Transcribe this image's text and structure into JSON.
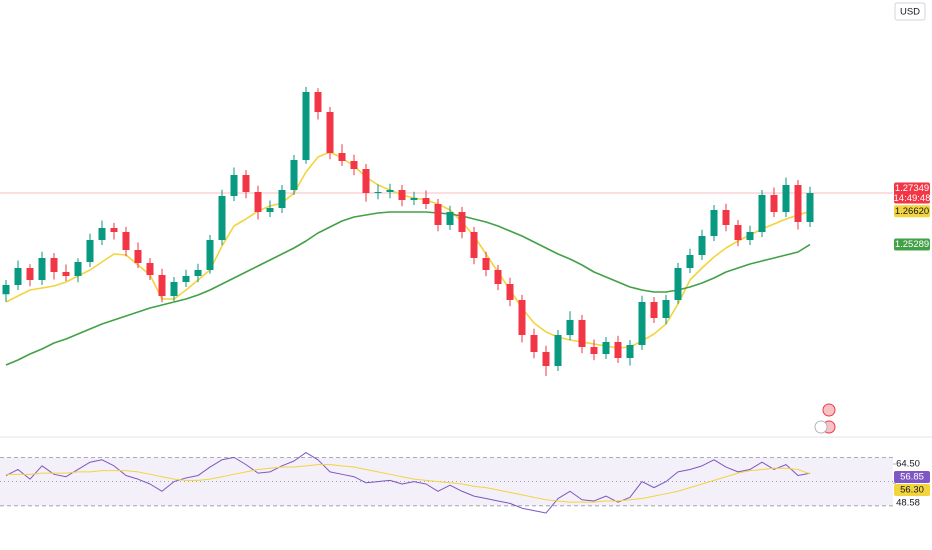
{
  "ui": {
    "currency": "USD"
  },
  "chart_data": {
    "type": "candlestick",
    "ylim": [
      1.1767,
      1.3507
    ],
    "up_color": "#089981",
    "down_color": "#f23645",
    "open": [
      1.233,
      1.2367,
      1.2435,
      1.2387,
      1.2475,
      1.2419,
      1.2403,
      1.2459,
      1.2547,
      1.2595,
      1.2579,
      1.2507,
      1.2455,
      1.2407,
      1.2323,
      1.2379,
      1.2403,
      1.2427,
      1.2547,
      1.2723,
      1.2807,
      1.2739,
      1.2659,
      1.2675,
      1.2747,
      1.2867,
      1.3139,
      1.3059,
      1.2895,
      1.2863,
      1.2831,
      1.2735,
      1.2739,
      1.2747,
      1.2707,
      1.2715,
      1.2691,
      1.2607,
      1.2659,
      1.2579,
      1.2475,
      1.2427,
      1.2371,
      1.2307,
      1.2167,
      1.2099,
      1.2043,
      1.2167,
      1.2227,
      1.2119,
      1.2091,
      1.2139,
      1.2075,
      1.2127,
      1.2299,
      1.2235,
      1.2307,
      1.2435,
      1.2487,
      1.2563,
      1.2667,
      1.2607,
      1.2547,
      1.2579,
      1.2727,
      1.2659,
      1.2767,
      1.2619
    ],
    "high": [
      1.2387,
      1.2465,
      1.245,
      1.25,
      1.2495,
      1.2449,
      1.2474,
      1.2572,
      1.2625,
      1.2615,
      1.2599,
      1.2537,
      1.2475,
      1.2432,
      1.2399,
      1.2428,
      1.2452,
      1.2567,
      1.2748,
      1.2837,
      1.2827,
      1.2764,
      1.2705,
      1.2767,
      1.2887,
      1.3159,
      1.3154,
      1.3079,
      1.293,
      1.2888,
      1.2851,
      1.2769,
      1.2772,
      1.2767,
      1.274,
      1.2745,
      1.2711,
      1.2684,
      1.2679,
      1.2599,
      1.25,
      1.2447,
      1.2396,
      1.2327,
      1.2192,
      1.2124,
      1.2187,
      1.2262,
      1.2247,
      1.2149,
      1.2159,
      1.2164,
      1.2147,
      1.2324,
      1.2319,
      1.2327,
      1.2455,
      1.2512,
      1.2588,
      1.2687,
      1.2692,
      1.2627,
      1.2604,
      1.2747,
      1.2757,
      1.2797,
      1.2787,
      1.276
    ],
    "low": [
      1.23,
      1.2347,
      1.2362,
      1.2367,
      1.2389,
      1.2383,
      1.2378,
      1.2439,
      1.2527,
      1.2549,
      1.2482,
      1.2435,
      1.2387,
      1.2298,
      1.2303,
      1.2359,
      1.2378,
      1.2412,
      1.2527,
      1.2703,
      1.2714,
      1.2629,
      1.2639,
      1.2655,
      1.2727,
      1.2852,
      1.3029,
      1.287,
      1.2843,
      1.2806,
      1.27,
      1.271,
      1.2714,
      1.2682,
      1.2687,
      1.2671,
      1.2582,
      1.2587,
      1.2554,
      1.245,
      1.2402,
      1.2346,
      1.2282,
      1.2137,
      1.2074,
      1.2003,
      1.2023,
      1.2147,
      1.2094,
      1.2066,
      1.2071,
      1.2055,
      1.2045,
      1.2107,
      1.2215,
      1.221,
      1.2292,
      1.2415,
      1.2467,
      1.2543,
      1.2582,
      1.2522,
      1.2527,
      1.2559,
      1.2639,
      1.2639,
      1.2589,
      1.2599
    ],
    "close": [
      1.2367,
      1.2435,
      1.2387,
      1.2475,
      1.2419,
      1.2403,
      1.2459,
      1.2547,
      1.2595,
      1.2579,
      1.2507,
      1.2455,
      1.2407,
      1.2323,
      1.2379,
      1.2403,
      1.2427,
      1.2547,
      1.2723,
      1.2807,
      1.2739,
      1.2659,
      1.2675,
      1.2747,
      1.2867,
      1.3139,
      1.3059,
      1.2895,
      1.2863,
      1.2831,
      1.2735,
      1.2739,
      1.2747,
      1.2707,
      1.2715,
      1.2691,
      1.2607,
      1.2659,
      1.2579,
      1.2475,
      1.2427,
      1.2371,
      1.2307,
      1.2167,
      1.2099,
      1.2043,
      1.2167,
      1.2227,
      1.2119,
      1.2091,
      1.2139,
      1.2075,
      1.2127,
      1.2299,
      1.2235,
      1.2307,
      1.2435,
      1.2487,
      1.2563,
      1.2667,
      1.2607,
      1.2547,
      1.2579,
      1.2727,
      1.2659,
      1.2767,
      1.2619,
      1.27349
    ],
    "countdown": "14:49:48",
    "series": [
      {
        "color": "#f2d43d",
        "last_label": "1.26620",
        "values": [
          1.2299,
          1.2323,
          1.2347,
          1.2355,
          1.2363,
          1.2379,
          1.2403,
          1.2427,
          1.2459,
          1.2491,
          1.2487,
          1.2447,
          1.2407,
          1.2311,
          1.2311,
          1.2347,
          1.2387,
          1.2427,
          1.2523,
          1.2603,
          1.2631,
          1.2663,
          1.2683,
          1.2695,
          1.2735,
          1.2819,
          1.2879,
          1.2899,
          1.2875,
          1.2843,
          1.2799,
          1.2767,
          1.2747,
          1.2727,
          1.2715,
          1.2707,
          1.2691,
          1.2667,
          1.2619,
          1.2563,
          1.2491,
          1.2419,
          1.2347,
          1.2275,
          1.2215,
          1.2179,
          1.2159,
          1.2147,
          1.2139,
          1.2131,
          1.2123,
          1.2115,
          1.2119,
          1.2143,
          1.2171,
          1.2211,
          1.2291,
          1.2387,
          1.2435,
          1.2479,
          1.2515,
          1.2543,
          1.2567,
          1.2591,
          1.2611,
          1.2631,
          1.2647,
          1.2662
        ]
      },
      {
        "color": "#43a047",
        "last_label": "1.25289",
        "values": [
          1.2047,
          1.2067,
          1.2091,
          1.2111,
          1.2135,
          1.2151,
          1.2171,
          1.2191,
          1.2211,
          1.2227,
          1.2243,
          1.2259,
          1.2275,
          1.2287,
          1.2299,
          1.2311,
          1.2327,
          1.2347,
          1.2371,
          1.2395,
          1.2419,
          1.2443,
          1.2467,
          1.2491,
          1.2515,
          1.2543,
          1.2575,
          1.2599,
          1.2623,
          1.2639,
          1.2647,
          1.2655,
          1.2659,
          1.2659,
          1.2659,
          1.2659,
          1.2655,
          1.2651,
          1.2643,
          1.2631,
          1.2619,
          1.2603,
          1.2583,
          1.2563,
          1.2539,
          1.2515,
          1.2491,
          1.2471,
          1.2447,
          1.2419,
          1.2399,
          1.2379,
          1.2359,
          1.2347,
          1.2339,
          1.2339,
          1.2347,
          1.2359,
          1.2375,
          1.2395,
          1.2419,
          1.2435,
          1.2451,
          1.2463,
          1.2475,
          1.2487,
          1.2499,
          1.25289
        ]
      }
    ],
    "rsi": {
      "ylim": [
        10,
        86
      ],
      "bands": [
        70,
        50,
        30
      ],
      "color": "#7e57c2",
      "yticks": [
        {
          "value": 64.5,
          "label": "64.50"
        },
        {
          "value": 48.58,
          "label": "48.58"
        }
      ],
      "values": [
        55,
        60,
        52,
        63,
        56,
        54,
        60,
        66,
        68,
        63,
        55,
        52,
        48,
        42,
        50,
        53,
        55,
        62,
        68,
        70,
        64,
        57,
        58,
        63,
        67,
        74,
        68,
        58,
        56,
        54,
        49,
        50,
        51,
        48,
        50,
        48,
        42,
        47,
        42,
        38,
        36,
        34,
        32,
        28,
        26,
        24,
        36,
        42,
        35,
        34,
        38,
        33,
        37,
        50,
        45,
        50,
        58,
        60,
        63,
        68,
        62,
        58,
        60,
        66,
        60,
        64,
        55,
        56.85
      ],
      "ma": {
        "color": "#f2d43d",
        "last_label": "56.30",
        "values": [
          56,
          56,
          56,
          57,
          57,
          57,
          58,
          58,
          59,
          59,
          59,
          58,
          56,
          54,
          52,
          51,
          51,
          52,
          54,
          56,
          58,
          60,
          61,
          62,
          62,
          63,
          64,
          64,
          63,
          62,
          60,
          58,
          56,
          54,
          52,
          51,
          50,
          49,
          48,
          46,
          45,
          43,
          41,
          39,
          37,
          35,
          34,
          33,
          33,
          33,
          34,
          34,
          35,
          36,
          38,
          40,
          42,
          45,
          48,
          51,
          54,
          57,
          59,
          60,
          61,
          61,
          60,
          56.3
        ]
      }
    }
  }
}
